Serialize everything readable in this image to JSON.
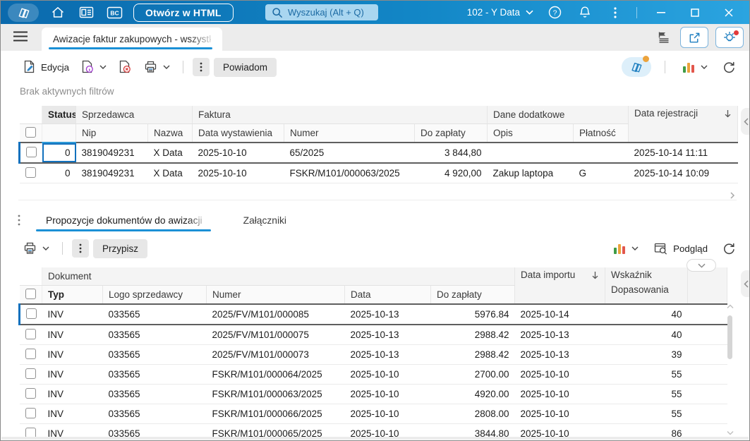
{
  "topbar": {
    "bc_label": "BC",
    "open_html_label": "Otwórz w HTML",
    "search_placeholder": "Wyszukaj (Alt + Q)",
    "environment": "102 - Y Data"
  },
  "tabbar": {
    "title": "Awizacje faktur zakupowych - wszystk"
  },
  "actionbar": {
    "edit_label": "Edycja",
    "notify_label": "Powiadom"
  },
  "filter_text": "Brak aktywnych filtrów",
  "upper_table": {
    "groups": {
      "status": "Status",
      "sprzedawca": "Sprzedawca",
      "faktura": "Faktura",
      "dane_dodatkowe": "Dane dodatkowe",
      "data_rejestracji": "Data rejestracji"
    },
    "columns": {
      "nip": "Nip",
      "nazwa": "Nazwa",
      "data_wystawienia": "Data wystawienia",
      "numer": "Numer",
      "do_zaplaty": "Do zapłaty",
      "opis": "Opis",
      "platnosc": "Płatność"
    },
    "rows": [
      [
        "0",
        "3819049231",
        "X Data",
        "2025-10-10",
        "65/2025",
        "3 844,80",
        "",
        "",
        "2025-10-14 11:11"
      ],
      [
        "0",
        "3819049231",
        "X Data",
        "2025-10-10",
        "FSKR/M101/000063/2025",
        "4 920,00",
        "Zakup laptopa",
        "G",
        "2025-10-14 10:09"
      ]
    ]
  },
  "bottom_pane": {
    "tabs": [
      {
        "label": "Propozycje dokumentów do awizacji"
      },
      {
        "label": "Załączniki"
      }
    ],
    "assign_label": "Przypisz",
    "preview_label": "Podgląd",
    "lower_table": {
      "group_dokument": "Dokument",
      "col_typ": "Typ",
      "col_logo": "Logo sprzedawcy",
      "col_numer": "Numer",
      "col_data": "Data",
      "col_do_zaplaty": "Do zapłaty",
      "col_data_importu": "Data importu",
      "col_wskaznik_line1": "Wskaźnik",
      "col_wskaznik_line2": "Dopasowania",
      "rows": [
        [
          "INV",
          "033565",
          "2025/FV/M101/000085",
          "2025-10-13",
          "5976.84",
          "2025-10-14",
          "40"
        ],
        [
          "INV",
          "033565",
          "2025/FV/M101/000075",
          "2025-10-13",
          "2988.42",
          "2025-10-13",
          "40"
        ],
        [
          "INV",
          "033565",
          "2025/FV/M101/000073",
          "2025-10-13",
          "2988.42",
          "2025-10-13",
          "39"
        ],
        [
          "INV",
          "033565",
          "FSKR/M101/000064/2025",
          "2025-10-10",
          "2700.00",
          "2025-10-10",
          "55"
        ],
        [
          "INV",
          "033565",
          "FSKR/M101/000063/2025",
          "2025-10-10",
          "4920.00",
          "2025-10-10",
          "55"
        ],
        [
          "INV",
          "033565",
          "FSKR/M101/000066/2025",
          "2025-10-10",
          "2808.00",
          "2025-10-10",
          "55"
        ],
        [
          "INV",
          "033565",
          "FSKR/M101/000065/2025",
          "2025-10-10",
          "3844.80",
          "2025-10-10",
          "86"
        ]
      ]
    }
  },
  "colors": {
    "topbar_dark": "#0b6aad",
    "topbar_light": "#2ba4e0",
    "accent_blue": "#1b90d6",
    "selection_blue": "#1271bd",
    "badge_orange": "#eca33c",
    "alert_red": "#e23b3b"
  }
}
